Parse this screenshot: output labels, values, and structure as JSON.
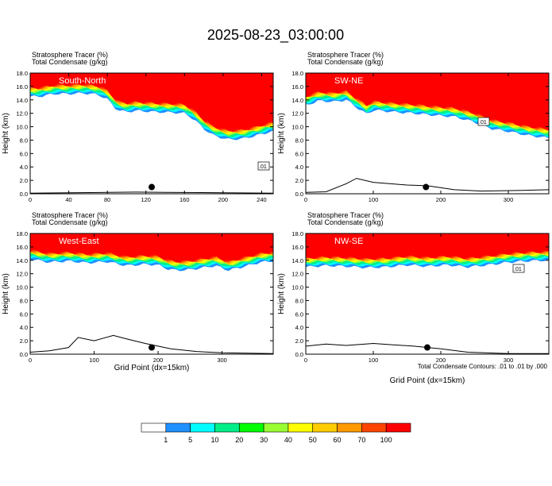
{
  "title": "2025-08-23_03:00:00",
  "footnote": "Total Condensate Contours: .01 to .01 by .000",
  "colors": {
    "levels": [
      "#ffffff",
      "#1e90ff",
      "#00ffff",
      "#00ee88",
      "#00ff00",
      "#99ff33",
      "#ffff00",
      "#ffcc00",
      "#ff9900",
      "#ff4400",
      "#ff0000"
    ],
    "terrain": "#000000",
    "contour": "#000000"
  },
  "colorbar": {
    "labels": [
      "1",
      "5",
      "10",
      "20",
      "30",
      "40",
      "50",
      "60",
      "70",
      "100"
    ]
  },
  "chart_data": [
    {
      "type": "heatmap",
      "name": "South-North",
      "label_top1": "Stratosphere Tracer   (%)",
      "label_top2": "Total Condensate   (g/kg)",
      "ylabel": "Height (km)",
      "xlabel": "",
      "xlim": [
        0,
        252
      ],
      "ylim": [
        0,
        18
      ],
      "xticks": [
        0,
        40,
        80,
        120,
        160,
        200,
        240
      ],
      "yticks": [
        "0.0",
        "2.0",
        "4.0",
        "6.0",
        "8.0",
        "10.0",
        "12.0",
        "14.0",
        "16.0",
        "18.0"
      ],
      "contour_label": ".01",
      "marker": {
        "x": 126,
        "y": 1.0
      },
      "red_base": [
        [
          0,
          15.8
        ],
        [
          10,
          15.8
        ],
        [
          25,
          16.2
        ],
        [
          40,
          16.2
        ],
        [
          55,
          16.3
        ],
        [
          70,
          16.1
        ],
        [
          80,
          15.4
        ],
        [
          90,
          13.8
        ],
        [
          100,
          13.5
        ],
        [
          110,
          13.7
        ],
        [
          130,
          13.5
        ],
        [
          150,
          13.4
        ],
        [
          160,
          13.3
        ],
        [
          170,
          12.4
        ],
        [
          180,
          11.0
        ],
        [
          190,
          10.0
        ],
        [
          205,
          9.4
        ],
        [
          220,
          9.5
        ],
        [
          235,
          10.0
        ],
        [
          245,
          10.4
        ],
        [
          252,
          10.6
        ]
      ],
      "terrain": [
        [
          0,
          0.1
        ],
        [
          40,
          0.15
        ],
        [
          80,
          0.2
        ],
        [
          110,
          0.25
        ],
        [
          140,
          0.2
        ],
        [
          200,
          0.15
        ],
        [
          252,
          0.1
        ]
      ]
    },
    {
      "type": "heatmap",
      "name": "SW-NE",
      "label_top1": "Stratosphere Tracer   (%)",
      "label_top2": "Total Condensate   (g/kg)",
      "ylabel": "Height (km)",
      "xlabel": "",
      "xlim": [
        0,
        360
      ],
      "ylim": [
        0,
        18
      ],
      "xticks": [
        0,
        100,
        200,
        300
      ],
      "yticks": [
        "0.0",
        "2.0",
        "4.0",
        "6.0",
        "8.0",
        "10.0",
        "12.0",
        "14.0",
        "16.0",
        "18.0"
      ],
      "contour_label": ".01",
      "marker": {
        "x": 178,
        "y": 1.0
      },
      "red_base": [
        [
          0,
          14.5
        ],
        [
          20,
          15.2
        ],
        [
          40,
          15.0
        ],
        [
          60,
          15.3
        ],
        [
          75,
          14.2
        ],
        [
          90,
          13.2
        ],
        [
          100,
          13.8
        ],
        [
          130,
          13.5
        ],
        [
          160,
          13.3
        ],
        [
          190,
          13.0
        ],
        [
          220,
          12.8
        ],
        [
          250,
          12.0
        ],
        [
          275,
          11.0
        ],
        [
          300,
          10.6
        ],
        [
          330,
          10.0
        ],
        [
          360,
          9.6
        ]
      ],
      "terrain": [
        [
          0,
          0.2
        ],
        [
          30,
          0.3
        ],
        [
          60,
          1.5
        ],
        [
          75,
          2.3
        ],
        [
          100,
          1.7
        ],
        [
          150,
          1.3
        ],
        [
          180,
          1.2
        ],
        [
          220,
          0.6
        ],
        [
          260,
          0.4
        ],
        [
          320,
          0.5
        ],
        [
          360,
          0.6
        ]
      ]
    },
    {
      "type": "heatmap",
      "name": "West-East",
      "label_top1": "Stratosphere Tracer   (%)",
      "label_top2": "Total Condensate   (g/kg)",
      "ylabel": "Height (km)",
      "xlabel": "Grid Point (dx=15km)",
      "xlim": [
        0,
        380
      ],
      "ylim": [
        0,
        18
      ],
      "xticks": [
        0,
        100,
        200,
        300
      ],
      "yticks": [
        "0.0",
        "2.0",
        "4.0",
        "6.0",
        "8.0",
        "10.0",
        "12.0",
        "14.0",
        "16.0",
        "18.0"
      ],
      "contour_label": "",
      "marker": {
        "x": 190,
        "y": 1.0
      },
      "red_base": [
        [
          0,
          15.5
        ],
        [
          30,
          15.0
        ],
        [
          60,
          15.2
        ],
        [
          90,
          14.9
        ],
        [
          120,
          15.1
        ],
        [
          150,
          14.5
        ],
        [
          180,
          14.7
        ],
        [
          200,
          14.6
        ],
        [
          215,
          14.0
        ],
        [
          230,
          13.8
        ],
        [
          250,
          13.9
        ],
        [
          270,
          14.2
        ],
        [
          290,
          14.5
        ],
        [
          310,
          13.8
        ],
        [
          340,
          14.5
        ],
        [
          360,
          15.0
        ],
        [
          380,
          15.2
        ]
      ],
      "terrain": [
        [
          0,
          0.3
        ],
        [
          30,
          0.5
        ],
        [
          60,
          1.0
        ],
        [
          75,
          2.5
        ],
        [
          100,
          2.0
        ],
        [
          130,
          2.8
        ],
        [
          150,
          2.3
        ],
        [
          180,
          1.6
        ],
        [
          220,
          0.8
        ],
        [
          260,
          0.4
        ],
        [
          300,
          0.2
        ],
        [
          380,
          0.1
        ]
      ]
    },
    {
      "type": "heatmap",
      "name": "NW-SE",
      "label_top1": "Stratosphere Tracer   (%)",
      "label_top2": "Total Condensate   (g/kg)",
      "ylabel": "Height (km)",
      "xlabel": "Grid Point (dx=15km)",
      "xlim": [
        0,
        360
      ],
      "ylim": [
        0,
        18
      ],
      "xticks": [
        0,
        100,
        200,
        300
      ],
      "yticks": [
        "0.0",
        "2.0",
        "4.0",
        "6.0",
        "8.0",
        "10.0",
        "12.0",
        "14.0",
        "16.0",
        "18.0"
      ],
      "contour_label": ".01",
      "marker": {
        "x": 180,
        "y": 1.0
      },
      "red_base": [
        [
          0,
          14.3
        ],
        [
          30,
          14.5
        ],
        [
          60,
          14.4
        ],
        [
          90,
          14.2
        ],
        [
          120,
          14.3
        ],
        [
          150,
          14.6
        ],
        [
          180,
          14.4
        ],
        [
          210,
          14.6
        ],
        [
          240,
          14.3
        ],
        [
          270,
          14.6
        ],
        [
          300,
          15.0
        ],
        [
          330,
          15.2
        ],
        [
          360,
          15.3
        ]
      ],
      "terrain": [
        [
          0,
          1.2
        ],
        [
          30,
          1.5
        ],
        [
          60,
          1.3
        ],
        [
          100,
          1.6
        ],
        [
          130,
          1.4
        ],
        [
          160,
          1.2
        ],
        [
          200,
          0.8
        ],
        [
          240,
          0.3
        ],
        [
          300,
          0.1
        ],
        [
          360,
          0.1
        ]
      ]
    }
  ]
}
